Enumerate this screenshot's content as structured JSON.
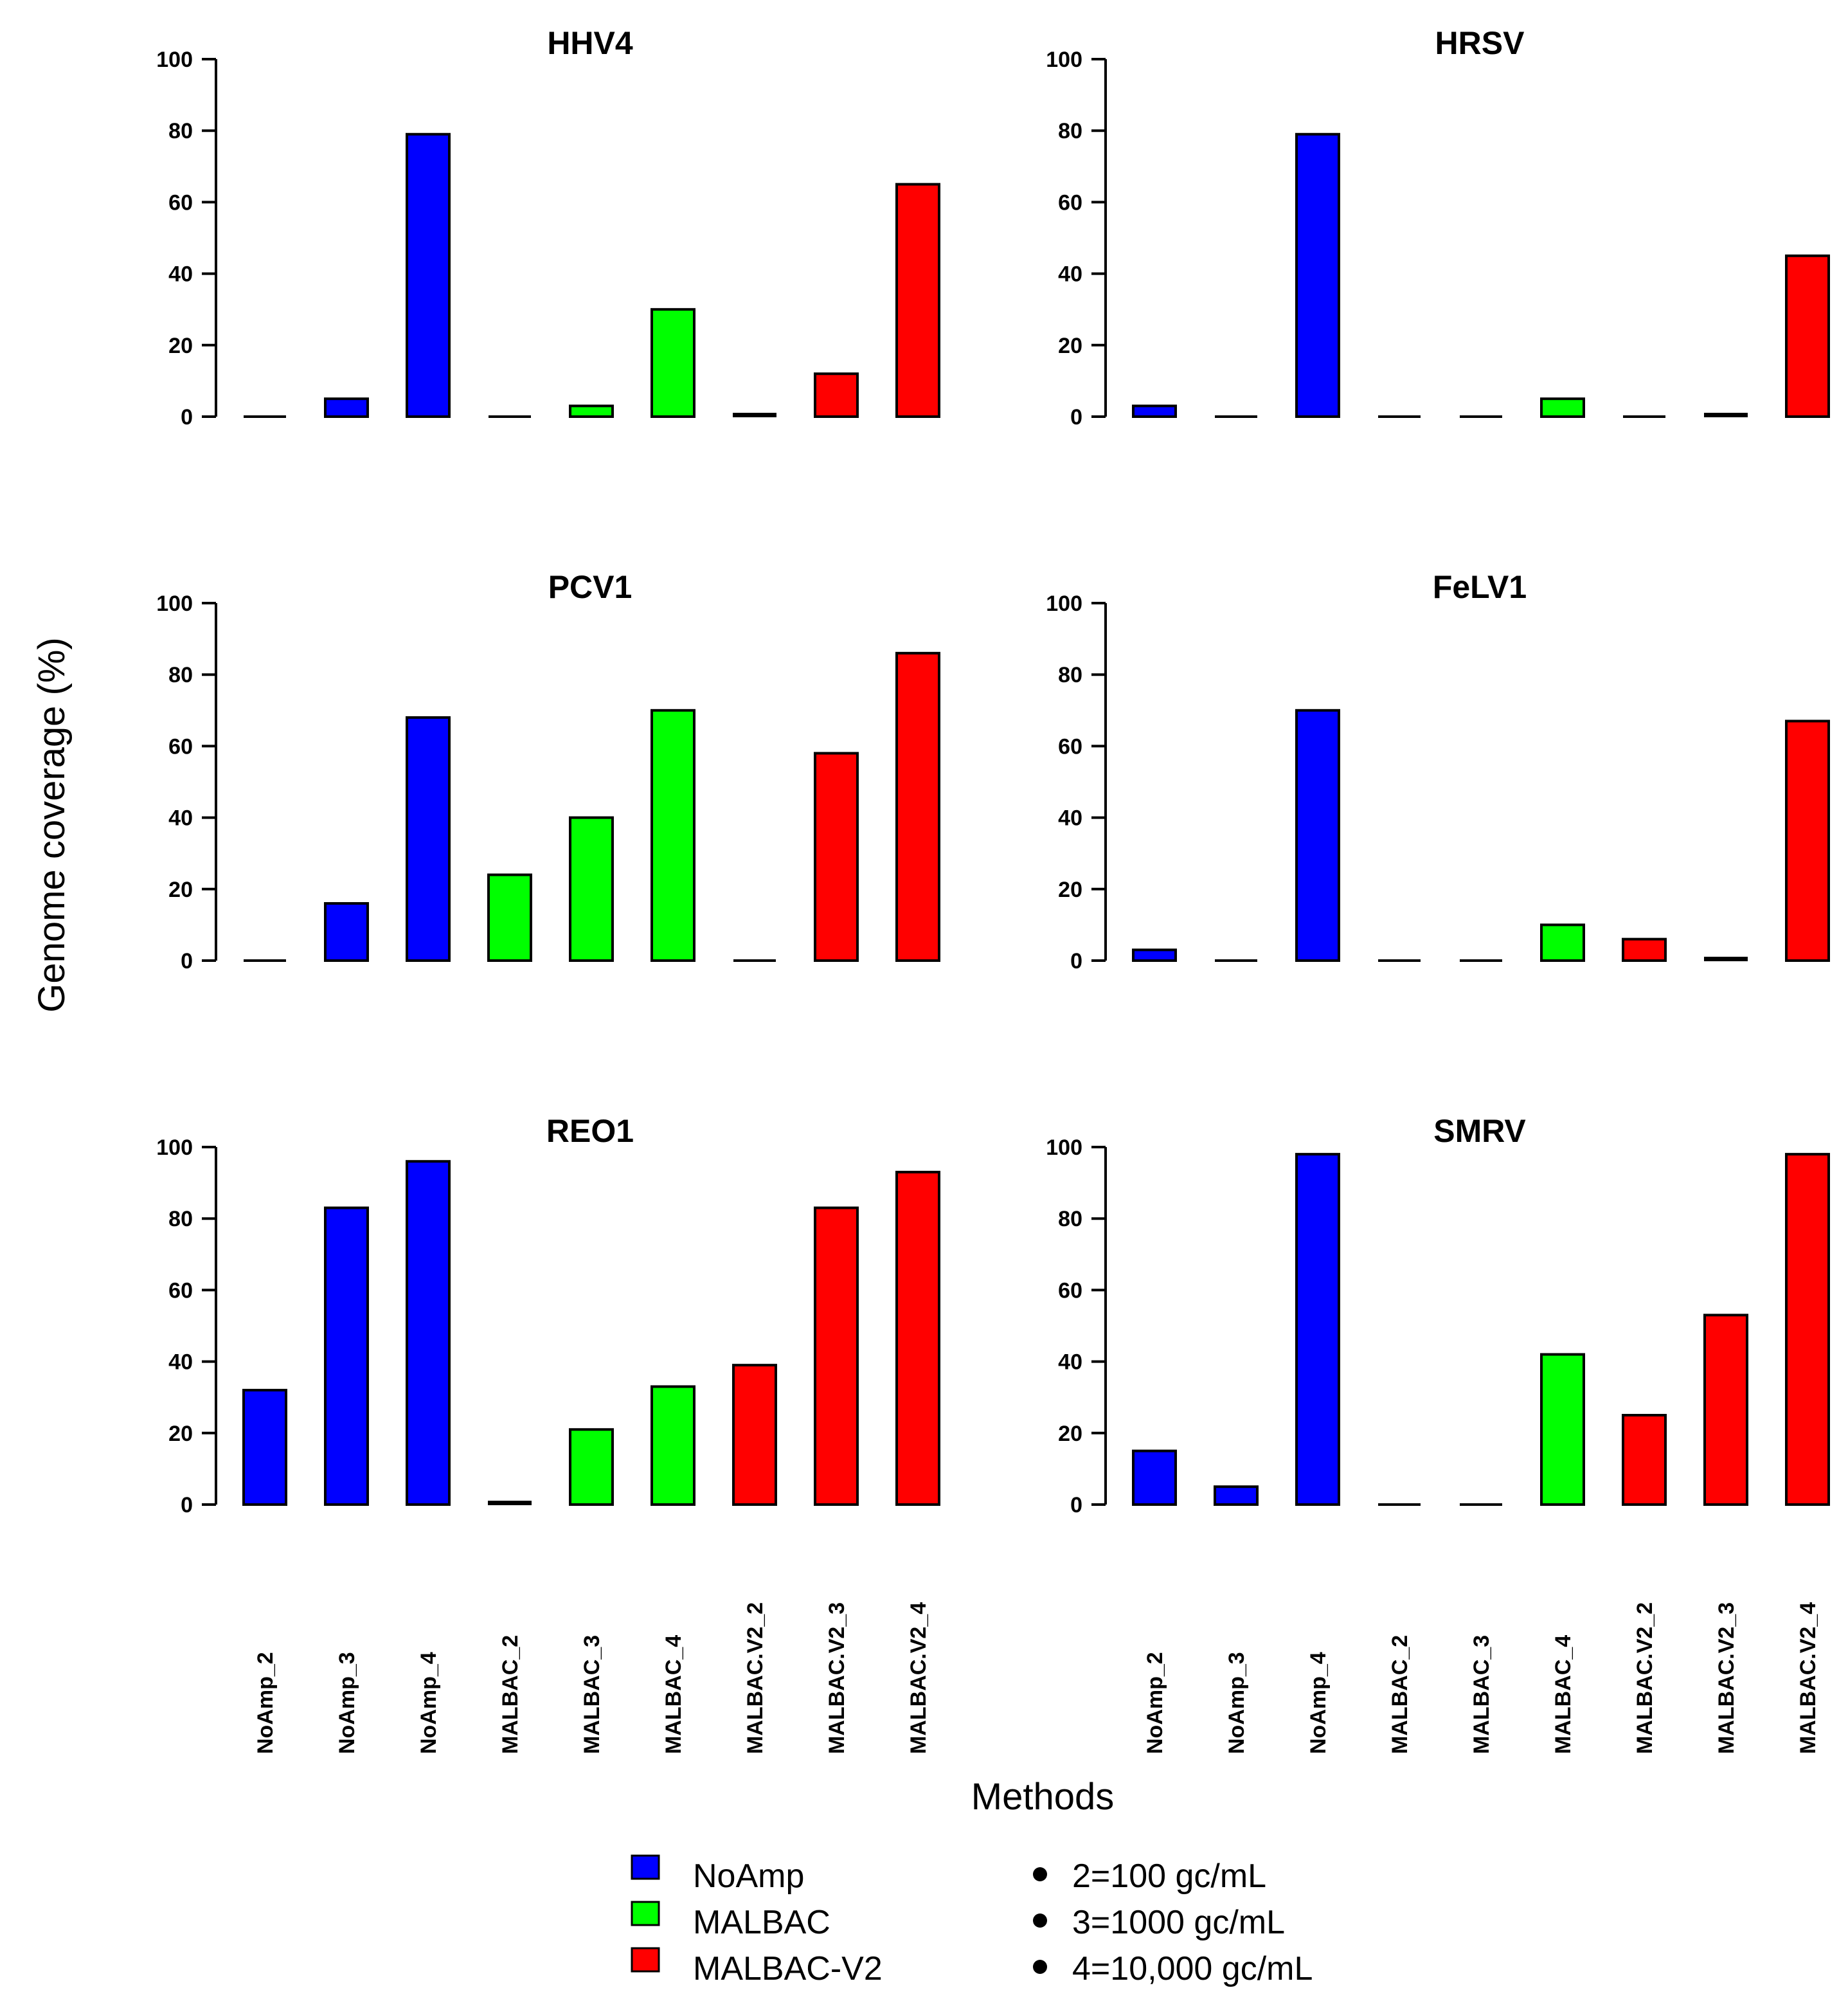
{
  "figure": {
    "y_axis_title": "Genome coverage (%)",
    "x_axis_title": "Methods"
  },
  "colors": {
    "NoAmp": "#0000ff",
    "MALBAC": "#00ff00",
    "MALBAC-V2": "#ff0000",
    "axis": "#000000"
  },
  "legend": {
    "methods": [
      {
        "label": "NoAmp",
        "color": "#0000ff"
      },
      {
        "label": "MALBAC",
        "color": "#00ff00"
      },
      {
        "label": "MALBAC-V2",
        "color": "#ff0000"
      }
    ],
    "concentrations": [
      "2=100 gc/mL",
      "3=1000 gc/mL",
      "4=10,000 gc/mL"
    ]
  },
  "chart_data": [
    {
      "type": "bar",
      "title": "HHV4",
      "categories": [
        "NoAmp_2",
        "NoAmp_3",
        "NoAmp_4",
        "MALBAC_2",
        "MALBAC_3",
        "MALBAC_4",
        "MALBAC.V2_2",
        "MALBAC.V2_3",
        "MALBAC.V2_4"
      ],
      "groups": [
        "NoAmp",
        "NoAmp",
        "NoAmp",
        "MALBAC",
        "MALBAC",
        "MALBAC",
        "MALBAC-V2",
        "MALBAC-V2",
        "MALBAC-V2"
      ],
      "values": [
        0,
        5,
        79,
        0,
        3,
        30,
        1,
        12,
        65
      ],
      "ylim": [
        0,
        100
      ],
      "yticks": [
        0,
        20,
        40,
        60,
        80,
        100
      ],
      "xlabel": "",
      "ylabel": ""
    },
    {
      "type": "bar",
      "title": "HRSV",
      "categories": [
        "NoAmp_2",
        "NoAmp_3",
        "NoAmp_4",
        "MALBAC_2",
        "MALBAC_3",
        "MALBAC_4",
        "MALBAC.V2_2",
        "MALBAC.V2_3",
        "MALBAC.V2_4"
      ],
      "groups": [
        "NoAmp",
        "NoAmp",
        "NoAmp",
        "MALBAC",
        "MALBAC",
        "MALBAC",
        "MALBAC-V2",
        "MALBAC-V2",
        "MALBAC-V2"
      ],
      "values": [
        3,
        0,
        79,
        0,
        0,
        5,
        0,
        1,
        45
      ],
      "ylim": [
        0,
        100
      ],
      "yticks": [
        0,
        20,
        40,
        60,
        80,
        100
      ],
      "xlabel": "",
      "ylabel": ""
    },
    {
      "type": "bar",
      "title": "PCV1",
      "categories": [
        "NoAmp_2",
        "NoAmp_3",
        "NoAmp_4",
        "MALBAC_2",
        "MALBAC_3",
        "MALBAC_4",
        "MALBAC.V2_2",
        "MALBAC.V2_3",
        "MALBAC.V2_4"
      ],
      "groups": [
        "NoAmp",
        "NoAmp",
        "NoAmp",
        "MALBAC",
        "MALBAC",
        "MALBAC",
        "MALBAC-V2",
        "MALBAC-V2",
        "MALBAC-V2"
      ],
      "values": [
        0,
        16,
        68,
        24,
        40,
        70,
        0,
        58,
        86
      ],
      "ylim": [
        0,
        100
      ],
      "yticks": [
        0,
        20,
        40,
        60,
        80,
        100
      ],
      "xlabel": "",
      "ylabel": ""
    },
    {
      "type": "bar",
      "title": "FeLV1",
      "categories": [
        "NoAmp_2",
        "NoAmp_3",
        "NoAmp_4",
        "MALBAC_2",
        "MALBAC_3",
        "MALBAC_4",
        "MALBAC.V2_2",
        "MALBAC.V2_3",
        "MALBAC.V2_4"
      ],
      "groups": [
        "NoAmp",
        "NoAmp",
        "NoAmp",
        "MALBAC",
        "MALBAC",
        "MALBAC",
        "MALBAC-V2",
        "MALBAC-V2",
        "MALBAC-V2"
      ],
      "values": [
        3,
        0,
        70,
        0,
        0,
        10,
        6,
        1,
        67
      ],
      "ylim": [
        0,
        100
      ],
      "yticks": [
        0,
        20,
        40,
        60,
        80,
        100
      ],
      "xlabel": "",
      "ylabel": ""
    },
    {
      "type": "bar",
      "title": "REO1",
      "categories": [
        "NoAmp_2",
        "NoAmp_3",
        "NoAmp_4",
        "MALBAC_2",
        "MALBAC_3",
        "MALBAC_4",
        "MALBAC.V2_2",
        "MALBAC.V2_3",
        "MALBAC.V2_4"
      ],
      "groups": [
        "NoAmp",
        "NoAmp",
        "NoAmp",
        "MALBAC",
        "MALBAC",
        "MALBAC",
        "MALBAC-V2",
        "MALBAC-V2",
        "MALBAC-V2"
      ],
      "values": [
        32,
        83,
        96,
        1,
        21,
        33,
        39,
        83,
        93
      ],
      "ylim": [
        0,
        100
      ],
      "yticks": [
        0,
        20,
        40,
        60,
        80,
        100
      ],
      "xlabel": "",
      "ylabel": ""
    },
    {
      "type": "bar",
      "title": "SMRV",
      "categories": [
        "NoAmp_2",
        "NoAmp_3",
        "NoAmp_4",
        "MALBAC_2",
        "MALBAC_3",
        "MALBAC_4",
        "MALBAC.V2_2",
        "MALBAC.V2_3",
        "MALBAC.V2_4"
      ],
      "groups": [
        "NoAmp",
        "NoAmp",
        "NoAmp",
        "MALBAC",
        "MALBAC",
        "MALBAC",
        "MALBAC-V2",
        "MALBAC-V2",
        "MALBAC-V2"
      ],
      "values": [
        15,
        5,
        98,
        0,
        0,
        42,
        25,
        53,
        98
      ],
      "ylim": [
        0,
        100
      ],
      "yticks": [
        0,
        20,
        40,
        60,
        80,
        100
      ],
      "xlabel": "",
      "ylabel": ""
    }
  ]
}
